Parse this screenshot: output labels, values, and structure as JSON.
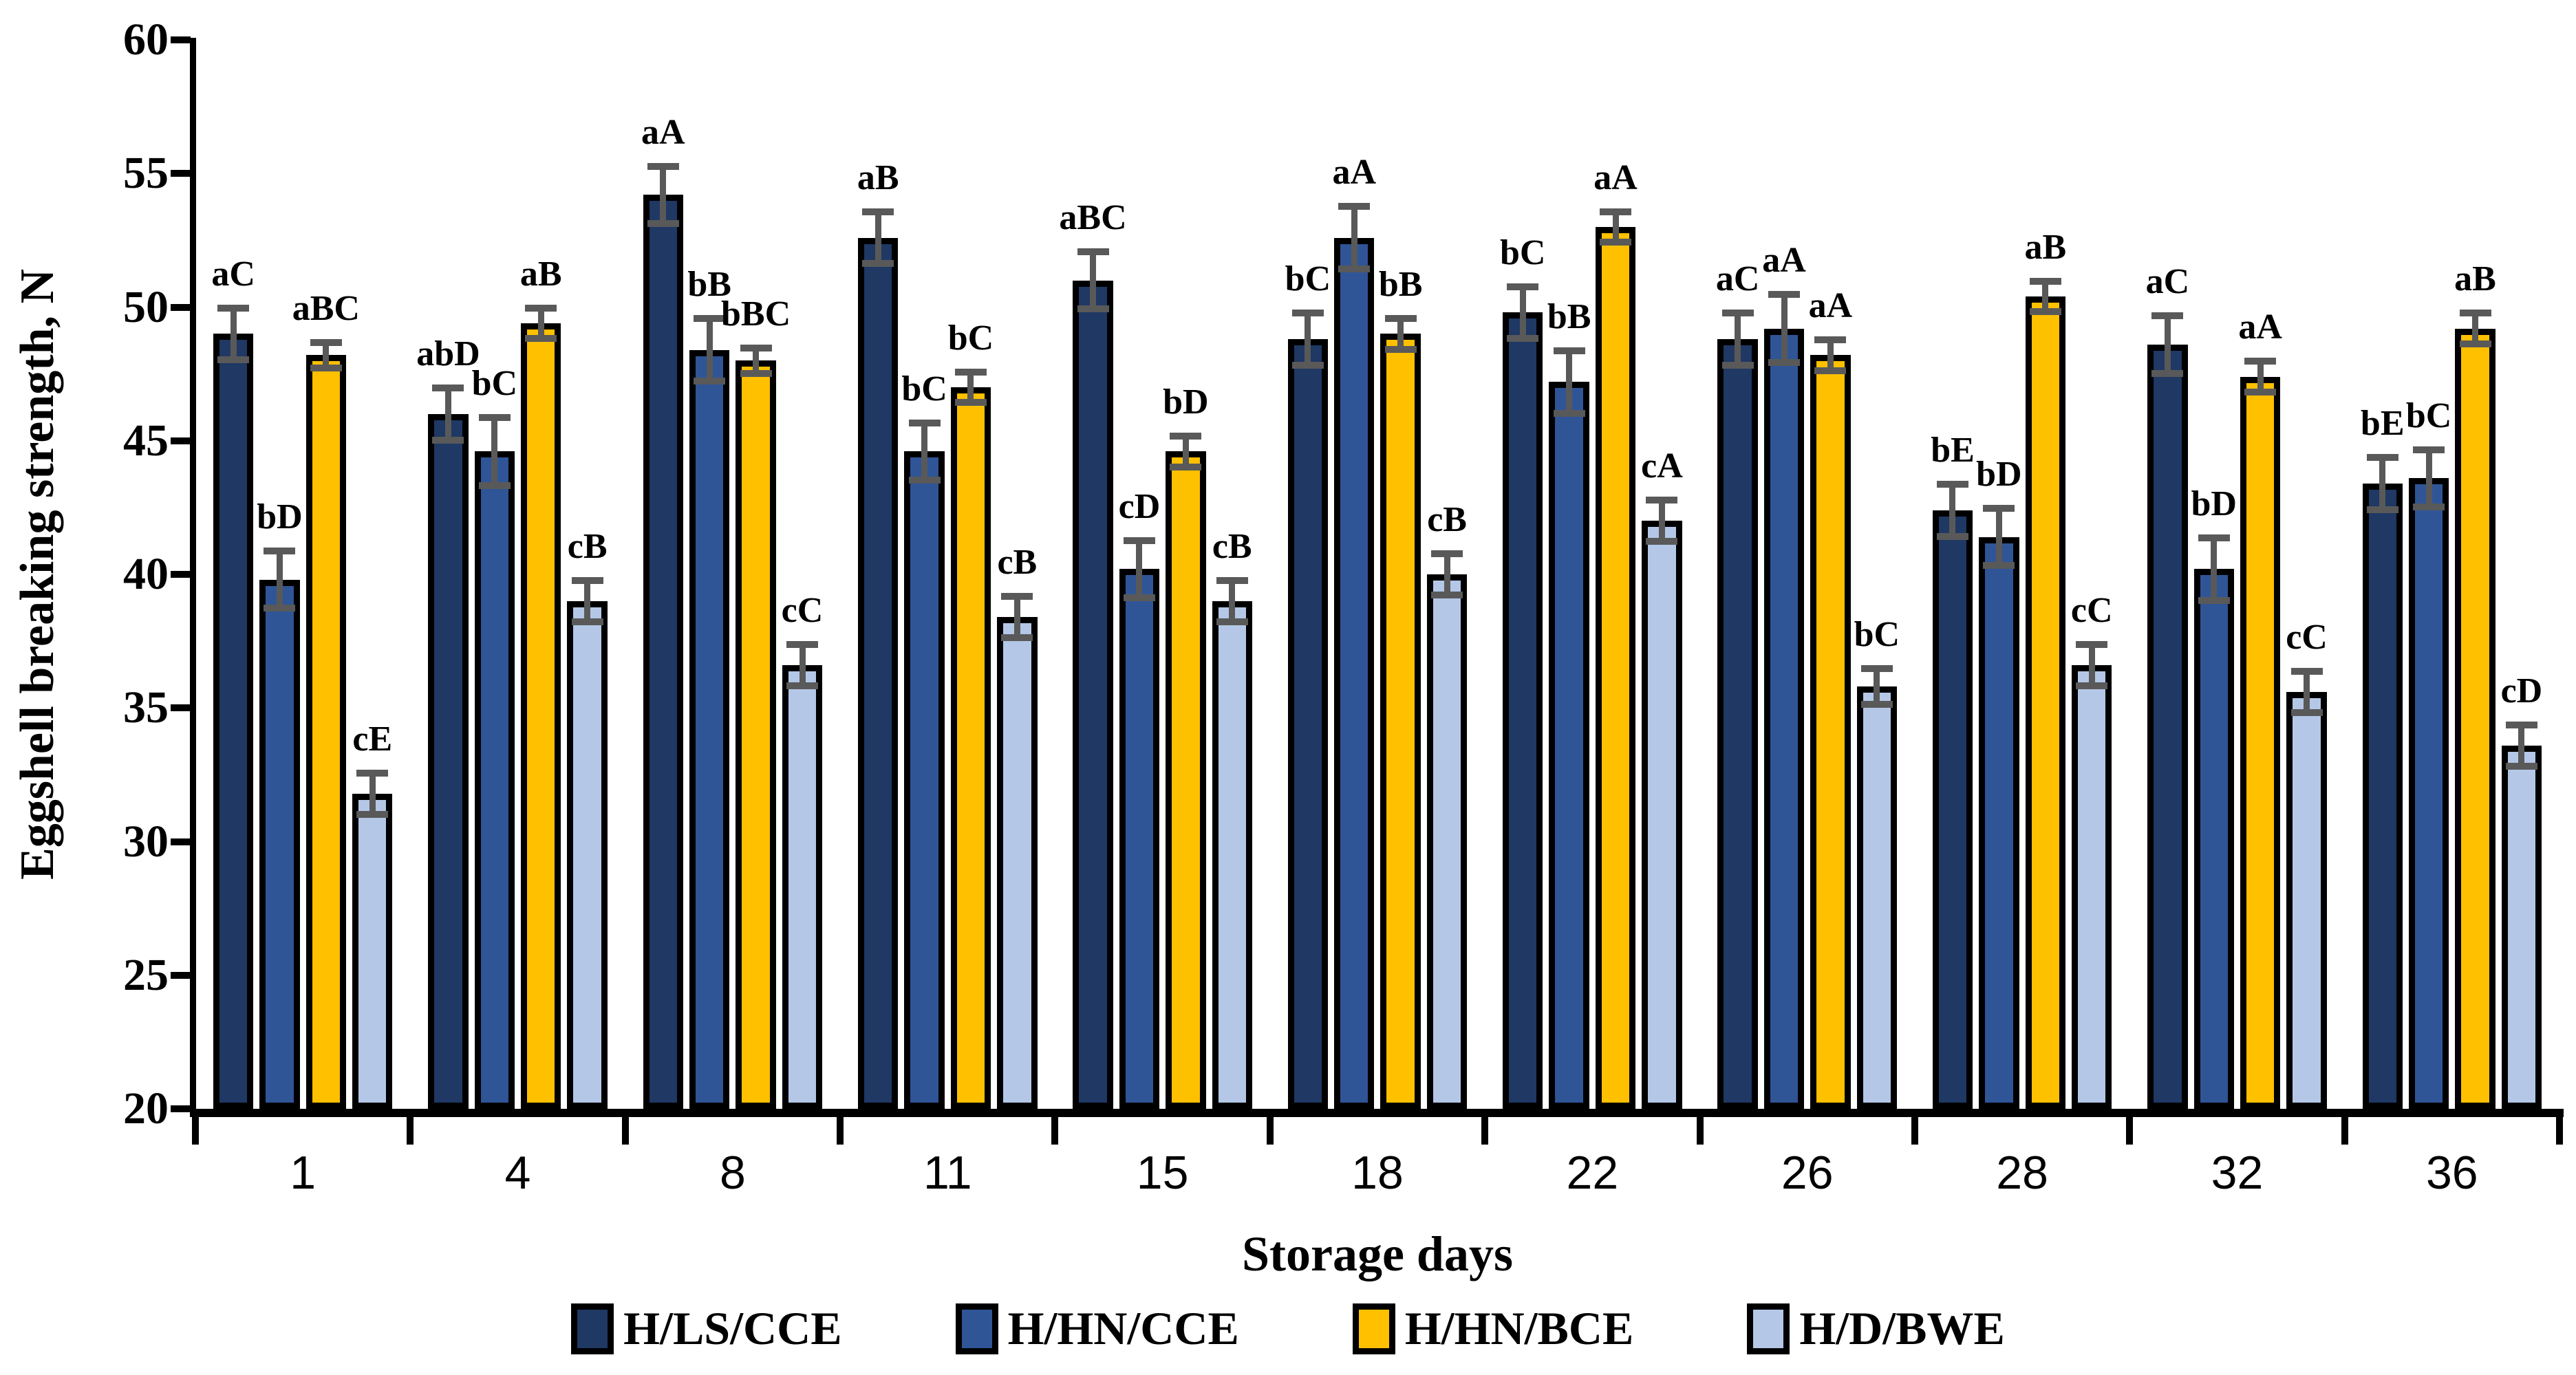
{
  "chart_data": {
    "type": "bar",
    "title": "",
    "xlabel": "Storage days",
    "ylabel": "Eggshell breaking strength, N",
    "ylim": [
      20,
      60
    ],
    "ytick_step": 5,
    "grid": false,
    "background": "#ffffff",
    "axis_color": "#000000",
    "error_bar_color": "#595959",
    "categories": [
      "1",
      "4",
      "8",
      "11",
      "15",
      "18",
      "22",
      "26",
      "28",
      "32",
      "36"
    ],
    "series": [
      {
        "name": "H/LS/CCE",
        "color": "#1F3864",
        "values": [
          49.0,
          46.0,
          54.2,
          52.6,
          51.0,
          48.8,
          49.8,
          48.8,
          42.4,
          48.6,
          43.4
        ],
        "errors": [
          1.1,
          1.1,
          1.2,
          1.1,
          1.2,
          1.1,
          1.1,
          1.1,
          1.1,
          1.2,
          1.1
        ],
        "labels": [
          "aC",
          "abD",
          "aA",
          "aB",
          "aBC",
          "bC",
          "bC",
          "aC",
          "bE",
          "aC",
          "bE"
        ]
      },
      {
        "name": "H/HN/CCE",
        "color": "#2F5597",
        "values": [
          39.8,
          44.6,
          48.4,
          44.6,
          40.2,
          52.6,
          47.2,
          49.2,
          41.4,
          40.2,
          43.6
        ],
        "errors": [
          1.2,
          1.4,
          1.3,
          1.2,
          1.2,
          1.3,
          1.3,
          1.4,
          1.2,
          1.3,
          1.2
        ],
        "labels": [
          "bD",
          "bC",
          "bB",
          "bC",
          "cD",
          "aA",
          "bB",
          "aA",
          "bD",
          "bD",
          "bC"
        ]
      },
      {
        "name": "H/HN/BCE",
        "color": "#FFC000",
        "values": [
          48.2,
          49.4,
          48.0,
          47.0,
          44.6,
          49.0,
          53.0,
          48.2,
          50.4,
          47.4,
          49.2
        ],
        "errors": [
          0.6,
          0.7,
          0.6,
          0.7,
          0.7,
          0.7,
          0.7,
          0.7,
          0.7,
          0.7,
          0.7
        ],
        "labels": [
          "aBC",
          "aB",
          "bBC",
          "bC",
          "bD",
          "bB",
          "aA",
          "aA",
          "aB",
          "aA",
          "aB"
        ]
      },
      {
        "name": "H/D/BWE",
        "color": "#B4C7E7",
        "values": [
          31.8,
          39.0,
          36.6,
          38.4,
          39.0,
          40.0,
          42.0,
          35.8,
          36.6,
          35.6,
          33.6
        ],
        "errors": [
          0.9,
          0.9,
          0.9,
          0.9,
          0.9,
          0.9,
          0.9,
          0.8,
          0.9,
          0.9,
          0.9
        ],
        "labels": [
          "cE",
          "cB",
          "cC",
          "cB",
          "cB",
          "cB",
          "cA",
          "bC",
          "cC",
          "cC",
          "cD"
        ]
      }
    ],
    "legend": {
      "position": "bottom",
      "entries": [
        "H/LS/CCE",
        "H/HN/CCE",
        "H/HN/BCE",
        "H/D/BWE"
      ]
    }
  }
}
